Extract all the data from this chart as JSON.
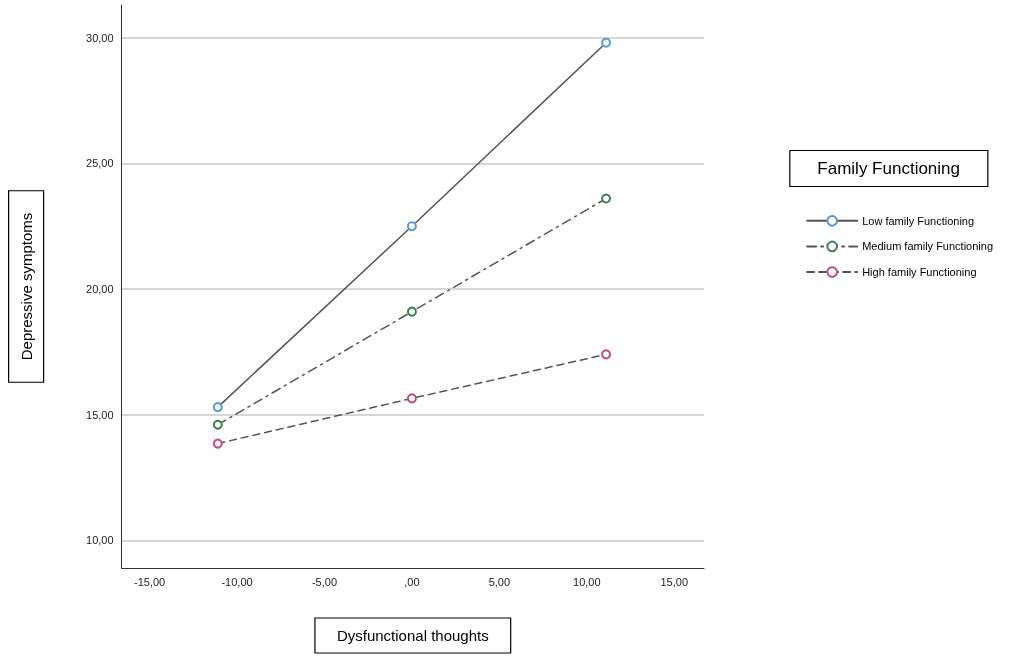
{
  "chart_data": {
    "type": "line",
    "xlabel": "Dysfunctional thoughts",
    "ylabel": "Depressive symptoms",
    "legend_title": "Family Functioning",
    "x": [
      -11.1,
      0,
      11.1
    ],
    "series": [
      {
        "name": "Low family Functioning",
        "color": "#5b9bd5",
        "line_style": "solid",
        "values": [
          15.3,
          22.5,
          29.8
        ]
      },
      {
        "name": "Medium family Functioning",
        "color": "#3f7f4f",
        "line_style": "dashdot",
        "values": [
          14.6,
          19.1,
          23.6
        ]
      },
      {
        "name": "High family Functioning",
        "color": "#c0507a",
        "line_style": "dashed",
        "values": [
          13.85,
          15.65,
          17.4
        ]
      }
    ],
    "xlim": [
      -16.6,
      16.7
    ],
    "xticks": [
      {
        "value": -15,
        "label": "-15,00"
      },
      {
        "value": -10,
        "label": "-10,00"
      },
      {
        "value": -5,
        "label": "-5,00"
      },
      {
        "value": 0,
        "label": ",00"
      },
      {
        "value": 5,
        "label": "5,00"
      },
      {
        "value": 10,
        "label": "10,00"
      },
      {
        "value": 15,
        "label": "15,00"
      }
    ],
    "ylim": [
      8.9,
      31.3
    ],
    "yticks": [
      {
        "value": 10,
        "label": "10,00"
      },
      {
        "value": 15,
        "label": "15,00"
      },
      {
        "value": 20,
        "label": "20,00"
      },
      {
        "value": 25,
        "label": "25,00"
      },
      {
        "value": 30,
        "label": "30,00"
      }
    ],
    "grid": "y",
    "legend": "right",
    "marker": "circle"
  }
}
